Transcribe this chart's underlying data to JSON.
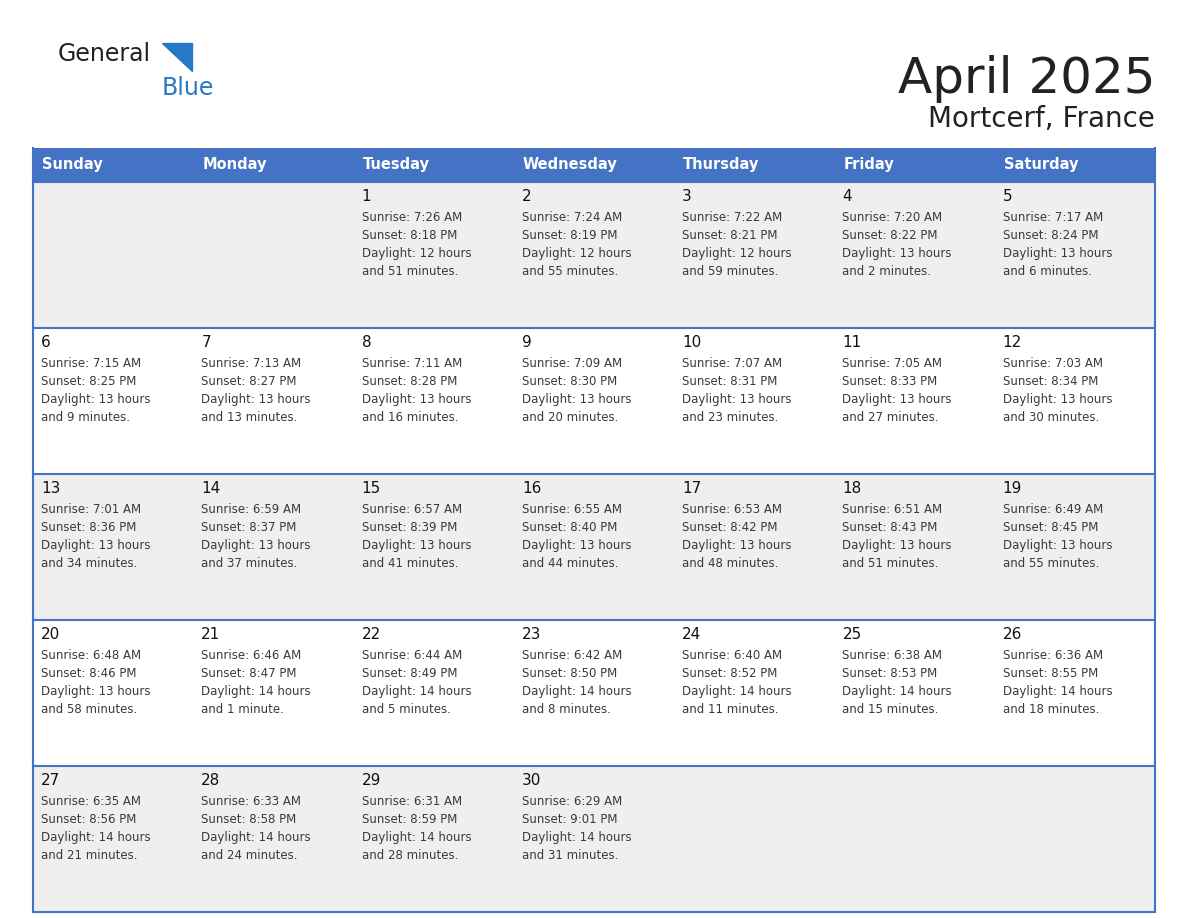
{
  "title": "April 2025",
  "subtitle": "Mortcerf, France",
  "days_of_week": [
    "Sunday",
    "Monday",
    "Tuesday",
    "Wednesday",
    "Thursday",
    "Friday",
    "Saturday"
  ],
  "header_bg": "#4472C4",
  "header_text": "#FFFFFF",
  "row_bg_odd": "#EFEFEF",
  "row_bg_even": "#FFFFFF",
  "cell_border": "#4472C4",
  "title_color": "#222222",
  "cell_text_color": "#3A3A3A",
  "calendar": [
    [
      {
        "day": null,
        "sunrise": null,
        "sunset": null,
        "daylight": null
      },
      {
        "day": null,
        "sunrise": null,
        "sunset": null,
        "daylight": null
      },
      {
        "day": 1,
        "sunrise": "7:26 AM",
        "sunset": "8:18 PM",
        "daylight": "12 hours\nand 51 minutes."
      },
      {
        "day": 2,
        "sunrise": "7:24 AM",
        "sunset": "8:19 PM",
        "daylight": "12 hours\nand 55 minutes."
      },
      {
        "day": 3,
        "sunrise": "7:22 AM",
        "sunset": "8:21 PM",
        "daylight": "12 hours\nand 59 minutes."
      },
      {
        "day": 4,
        "sunrise": "7:20 AM",
        "sunset": "8:22 PM",
        "daylight": "13 hours\nand 2 minutes."
      },
      {
        "day": 5,
        "sunrise": "7:17 AM",
        "sunset": "8:24 PM",
        "daylight": "13 hours\nand 6 minutes."
      }
    ],
    [
      {
        "day": 6,
        "sunrise": "7:15 AM",
        "sunset": "8:25 PM",
        "daylight": "13 hours\nand 9 minutes."
      },
      {
        "day": 7,
        "sunrise": "7:13 AM",
        "sunset": "8:27 PM",
        "daylight": "13 hours\nand 13 minutes."
      },
      {
        "day": 8,
        "sunrise": "7:11 AM",
        "sunset": "8:28 PM",
        "daylight": "13 hours\nand 16 minutes."
      },
      {
        "day": 9,
        "sunrise": "7:09 AM",
        "sunset": "8:30 PM",
        "daylight": "13 hours\nand 20 minutes."
      },
      {
        "day": 10,
        "sunrise": "7:07 AM",
        "sunset": "8:31 PM",
        "daylight": "13 hours\nand 23 minutes."
      },
      {
        "day": 11,
        "sunrise": "7:05 AM",
        "sunset": "8:33 PM",
        "daylight": "13 hours\nand 27 minutes."
      },
      {
        "day": 12,
        "sunrise": "7:03 AM",
        "sunset": "8:34 PM",
        "daylight": "13 hours\nand 30 minutes."
      }
    ],
    [
      {
        "day": 13,
        "sunrise": "7:01 AM",
        "sunset": "8:36 PM",
        "daylight": "13 hours\nand 34 minutes."
      },
      {
        "day": 14,
        "sunrise": "6:59 AM",
        "sunset": "8:37 PM",
        "daylight": "13 hours\nand 37 minutes."
      },
      {
        "day": 15,
        "sunrise": "6:57 AM",
        "sunset": "8:39 PM",
        "daylight": "13 hours\nand 41 minutes."
      },
      {
        "day": 16,
        "sunrise": "6:55 AM",
        "sunset": "8:40 PM",
        "daylight": "13 hours\nand 44 minutes."
      },
      {
        "day": 17,
        "sunrise": "6:53 AM",
        "sunset": "8:42 PM",
        "daylight": "13 hours\nand 48 minutes."
      },
      {
        "day": 18,
        "sunrise": "6:51 AM",
        "sunset": "8:43 PM",
        "daylight": "13 hours\nand 51 minutes."
      },
      {
        "day": 19,
        "sunrise": "6:49 AM",
        "sunset": "8:45 PM",
        "daylight": "13 hours\nand 55 minutes."
      }
    ],
    [
      {
        "day": 20,
        "sunrise": "6:48 AM",
        "sunset": "8:46 PM",
        "daylight": "13 hours\nand 58 minutes."
      },
      {
        "day": 21,
        "sunrise": "6:46 AM",
        "sunset": "8:47 PM",
        "daylight": "14 hours\nand 1 minute."
      },
      {
        "day": 22,
        "sunrise": "6:44 AM",
        "sunset": "8:49 PM",
        "daylight": "14 hours\nand 5 minutes."
      },
      {
        "day": 23,
        "sunrise": "6:42 AM",
        "sunset": "8:50 PM",
        "daylight": "14 hours\nand 8 minutes."
      },
      {
        "day": 24,
        "sunrise": "6:40 AM",
        "sunset": "8:52 PM",
        "daylight": "14 hours\nand 11 minutes."
      },
      {
        "day": 25,
        "sunrise": "6:38 AM",
        "sunset": "8:53 PM",
        "daylight": "14 hours\nand 15 minutes."
      },
      {
        "day": 26,
        "sunrise": "6:36 AM",
        "sunset": "8:55 PM",
        "daylight": "14 hours\nand 18 minutes."
      }
    ],
    [
      {
        "day": 27,
        "sunrise": "6:35 AM",
        "sunset": "8:56 PM",
        "daylight": "14 hours\nand 21 minutes."
      },
      {
        "day": 28,
        "sunrise": "6:33 AM",
        "sunset": "8:58 PM",
        "daylight": "14 hours\nand 24 minutes."
      },
      {
        "day": 29,
        "sunrise": "6:31 AM",
        "sunset": "8:59 PM",
        "daylight": "14 hours\nand 28 minutes."
      },
      {
        "day": 30,
        "sunrise": "6:29 AM",
        "sunset": "9:01 PM",
        "daylight": "14 hours\nand 31 minutes."
      },
      {
        "day": null,
        "sunrise": null,
        "sunset": null,
        "daylight": null
      },
      {
        "day": null,
        "sunrise": null,
        "sunset": null,
        "daylight": null
      },
      {
        "day": null,
        "sunrise": null,
        "sunset": null,
        "daylight": null
      }
    ]
  ],
  "logo_general_color": "#222222",
  "logo_blue_color": "#2878C8",
  "logo_triangle_color": "#2878C8"
}
